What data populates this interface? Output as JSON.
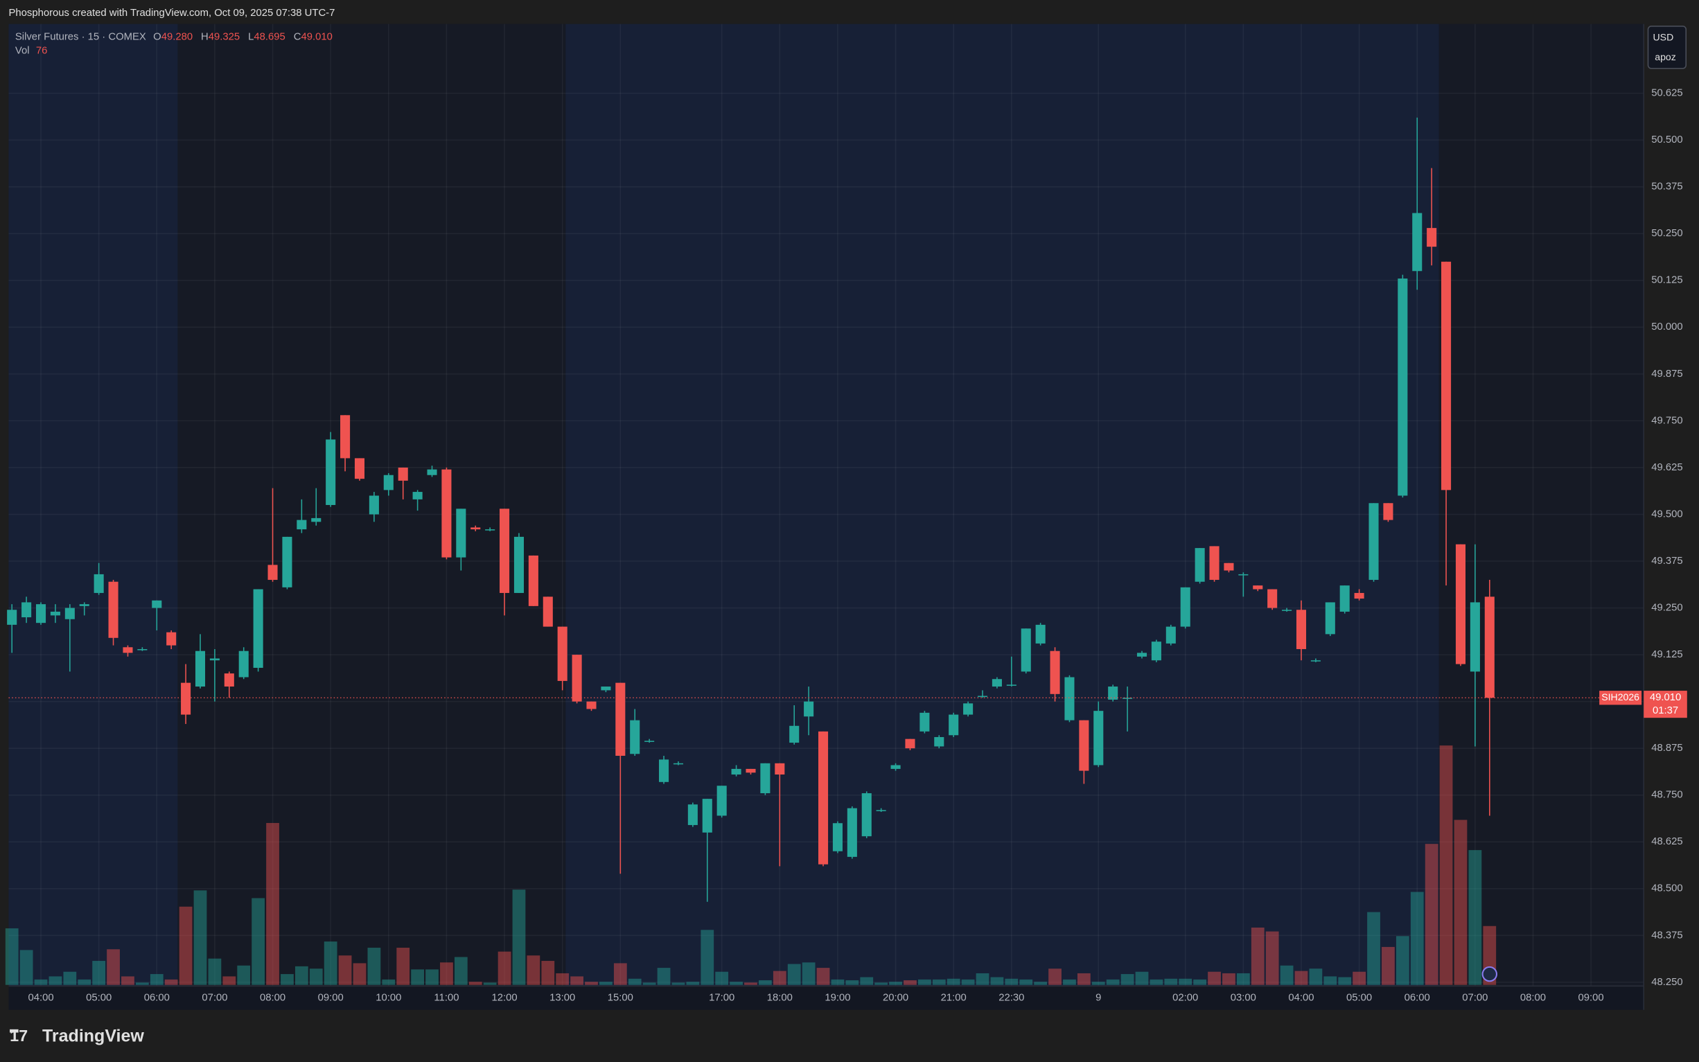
{
  "header": {
    "watermark": "Phosphorous created with TradingView.com, Oct 09, 2025 07:38 UTC-7"
  },
  "footer": {
    "brand": "TradingView",
    "logo": "17"
  },
  "chart_data": {
    "type": "candlestick",
    "legend": {
      "symbol": "Silver Futures · 15 · COMEX",
      "ohlc": [
        {
          "label": "O",
          "value": "49.280"
        },
        {
          "label": "H",
          "value": "49.325"
        },
        {
          "label": "L",
          "value": "48.695"
        },
        {
          "label": "C",
          "value": "49.010"
        }
      ],
      "volume_label": "Vol",
      "volume_value": "76"
    },
    "currency": "USD",
    "account": "apoz",
    "last_price": {
      "symbol": "SIH2026",
      "label": "49.010",
      "countdown": "01:37"
    },
    "up_color": "#26a69a",
    "down_color": "#ef5350",
    "open": [
      49.205,
      49.225,
      49.21,
      49.23,
      49.22,
      49.255,
      49.29,
      49.32,
      49.145,
      49.14,
      49.25,
      49.185,
      49.05,
      49.04,
      49.11,
      49.075,
      49.065,
      49.09,
      49.365,
      49.305,
      49.46,
      49.48,
      49.525,
      49.765,
      49.65,
      49.5,
      49.565,
      49.625,
      49.54,
      49.605,
      49.62,
      49.385,
      49.465,
      49.46,
      49.515,
      49.29,
      49.39,
      49.28,
      49.2,
      49.125,
      49.0,
      49.03,
      49.05,
      48.86,
      48.895,
      48.785,
      48.835,
      48.67,
      48.65,
      48.695,
      48.805,
      48.82,
      48.755,
      48.835,
      48.89,
      48.96,
      48.92,
      48.6,
      48.585,
      48.64,
      48.71,
      48.82,
      48.9,
      48.92,
      48.88,
      48.91,
      48.965,
      49.015,
      49.04,
      49.045,
      49.08,
      49.155,
      49.135,
      48.95,
      48.95,
      48.83,
      49.005,
      49.01,
      49.12,
      49.11,
      49.155,
      49.2,
      49.32,
      49.415,
      49.37,
      49.34,
      49.31,
      49.3,
      49.245,
      49.245,
      49.11,
      49.18,
      49.24,
      49.29,
      49.325,
      49.53,
      49.55,
      50.15,
      50.265,
      50.175,
      49.42,
      49.08,
      49.28
    ],
    "high": [
      49.26,
      49.28,
      49.265,
      49.26,
      49.26,
      49.265,
      49.37,
      49.325,
      49.15,
      49.145,
      49.27,
      49.19,
      49.1,
      49.18,
      49.14,
      49.08,
      49.145,
      49.3,
      49.57,
      49.44,
      49.54,
      49.57,
      49.72,
      49.765,
      49.65,
      49.56,
      49.61,
      49.625,
      49.565,
      49.63,
      49.625,
      49.515,
      49.47,
      49.465,
      49.515,
      49.45,
      49.39,
      49.28,
      49.2,
      49.125,
      49.0,
      49.04,
      49.05,
      48.98,
      48.9,
      48.855,
      48.84,
      48.73,
      48.74,
      48.775,
      48.83,
      48.82,
      48.835,
      48.835,
      48.99,
      49.04,
      48.92,
      48.68,
      48.72,
      48.76,
      48.715,
      48.835,
      48.9,
      48.975,
      48.91,
      48.97,
      49.0,
      49.03,
      49.065,
      49.12,
      49.195,
      49.21,
      49.145,
      49.07,
      48.95,
      49.0,
      49.045,
      49.04,
      49.135,
      49.165,
      49.205,
      49.305,
      49.41,
      49.415,
      49.37,
      49.345,
      49.31,
      49.3,
      49.25,
      49.27,
      49.115,
      49.265,
      49.31,
      49.3,
      49.53,
      49.53,
      50.14,
      50.56,
      50.425,
      50.175,
      49.42,
      49.42,
      49.325
    ],
    "low": [
      49.13,
      49.21,
      49.205,
      49.21,
      49.08,
      49.23,
      49.285,
      49.15,
      49.12,
      49.135,
      49.19,
      49.14,
      48.94,
      49.035,
      49.0,
      49.01,
      49.06,
      49.08,
      49.32,
      49.3,
      49.45,
      49.47,
      49.52,
      49.615,
      49.59,
      49.48,
      49.55,
      49.54,
      49.51,
      49.6,
      49.38,
      49.35,
      49.455,
      49.455,
      49.23,
      49.29,
      49.255,
      49.2,
      49.03,
      48.995,
      48.975,
      49.025,
      48.54,
      48.855,
      48.89,
      48.78,
      48.83,
      48.665,
      48.465,
      48.69,
      48.8,
      48.805,
      48.75,
      48.56,
      48.885,
      48.91,
      48.56,
      48.595,
      48.58,
      48.635,
      48.705,
      48.815,
      48.87,
      48.915,
      48.875,
      48.905,
      48.96,
      49.01,
      49.035,
      49.04,
      49.075,
      49.15,
      49.0,
      48.945,
      48.78,
      48.825,
      49.0,
      48.92,
      49.115,
      49.105,
      49.15,
      49.195,
      49.315,
      49.32,
      49.345,
      49.28,
      49.295,
      49.245,
      49.24,
      49.11,
      49.105,
      49.175,
      49.235,
      49.27,
      49.32,
      49.48,
      49.545,
      50.1,
      50.165,
      49.31,
      49.095,
      48.88,
      48.695
    ],
    "close": [
      49.245,
      49.265,
      49.26,
      49.24,
      49.25,
      49.26,
      49.34,
      49.17,
      49.13,
      49.14,
      49.27,
      49.15,
      48.965,
      49.135,
      49.115,
      49.04,
      49.135,
      49.3,
      49.325,
      49.44,
      49.485,
      49.49,
      49.7,
      49.65,
      49.595,
      49.55,
      49.605,
      49.59,
      49.56,
      49.62,
      49.385,
      49.515,
      49.46,
      49.46,
      49.29,
      49.44,
      49.255,
      49.2,
      49.055,
      49.0,
      48.98,
      49.04,
      48.855,
      48.95,
      48.895,
      48.845,
      48.835,
      48.725,
      48.74,
      48.775,
      48.82,
      48.81,
      48.835,
      48.805,
      48.935,
      49.0,
      48.565,
      48.675,
      48.715,
      48.755,
      48.71,
      48.83,
      48.875,
      48.97,
      48.905,
      48.965,
      48.995,
      49.015,
      49.06,
      49.045,
      49.195,
      49.205,
      49.02,
      49.065,
      48.815,
      48.975,
      49.04,
      49.01,
      49.13,
      49.16,
      49.2,
      49.305,
      49.41,
      49.325,
      49.35,
      49.34,
      49.3,
      49.25,
      49.245,
      49.14,
      49.11,
      49.265,
      49.31,
      49.275,
      49.53,
      49.485,
      50.13,
      50.305,
      50.215,
      49.565,
      49.1,
      49.265,
      49.01
    ],
    "volume": [
      73,
      45,
      7,
      11,
      17,
      7,
      31,
      46,
      11,
      3,
      14,
      7,
      101,
      122,
      34,
      11,
      25,
      112,
      209,
      14,
      24,
      21,
      56,
      38,
      28,
      48,
      7,
      48,
      20,
      20,
      29,
      36,
      4,
      3,
      43,
      123,
      38,
      31,
      15,
      11,
      4,
      4,
      28,
      8,
      3,
      22,
      3,
      4,
      71,
      17,
      4,
      3,
      6,
      18,
      27,
      29,
      22,
      7,
      6,
      10,
      3,
      4,
      6,
      7,
      7,
      8,
      7,
      15,
      10,
      8,
      7,
      4,
      21,
      7,
      15,
      4,
      7,
      14,
      17,
      7,
      8,
      8,
      7,
      17,
      15,
      15,
      74,
      69,
      25,
      18,
      21,
      11,
      10,
      17,
      94,
      49,
      63,
      120,
      182,
      309,
      213,
      174,
      76
    ],
    "ylim": [
      48.24,
      50.81
    ],
    "yticks": [
      50.625,
      {
        "value": 50.5,
        "label": "50.500"
      },
      50.375,
      {
        "value": 50.25,
        "label": "50.250"
      },
      50.125,
      {
        "value": 50.0,
        "label": "50.000"
      },
      49.875,
      {
        "value": 49.75,
        "label": "49.750"
      },
      49.625,
      {
        "value": 49.5,
        "label": "49.500"
      },
      49.375,
      {
        "value": 49.25,
        "label": "49.250"
      },
      49.125,
      {
        "value": 49.0,
        "label": "49.000"
      },
      48.875,
      {
        "value": 48.75,
        "label": "48.750"
      },
      48.625,
      {
        "value": 48.5,
        "label": "48.500"
      },
      48.375,
      {
        "value": 48.25,
        "label": "48.250"
      }
    ],
    "xticks": [
      {
        "value": 2,
        "label": "04:00"
      },
      {
        "value": 6,
        "label": "05:00"
      },
      {
        "value": 10,
        "label": "06:00"
      },
      {
        "value": 14,
        "label": "07:00"
      },
      {
        "value": 18,
        "label": "08:00"
      },
      {
        "value": 22,
        "label": "09:00"
      },
      {
        "value": 26,
        "label": "10:00"
      },
      {
        "value": 30,
        "label": "11:00"
      },
      {
        "value": 34,
        "label": "12:00"
      },
      {
        "value": 38,
        "label": "13:00"
      },
      {
        "value": 42,
        "label": "15:00"
      },
      {
        "value": 49,
        "label": "17:00"
      },
      {
        "value": 53,
        "label": "18:00"
      },
      {
        "value": 57,
        "label": "19:00"
      },
      {
        "value": 61,
        "label": "20:00"
      },
      {
        "value": 65,
        "label": "21:00"
      },
      {
        "value": 69,
        "label": "22:30"
      },
      {
        "value": 75,
        "label": "9"
      },
      {
        "value": 81,
        "label": "02:00"
      },
      {
        "value": 85,
        "label": "03:00"
      },
      {
        "value": 89,
        "label": "04:00"
      },
      {
        "value": 93,
        "label": "05:00"
      },
      {
        "value": 97,
        "label": "06:00"
      },
      {
        "value": 101,
        "label": "07:00"
      },
      {
        "value": 105,
        "label": "08:00"
      },
      {
        "value": 109,
        "label": "09:00"
      }
    ],
    "grid": true
  }
}
